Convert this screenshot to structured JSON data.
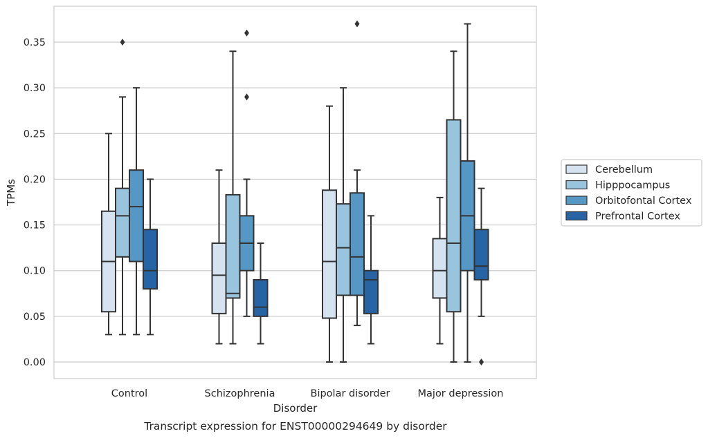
{
  "chart_data": {
    "type": "box",
    "caption": "Transcript expression for ENST00000294649 by disorder",
    "xlabel": "Disorder",
    "ylabel": "TPMs",
    "ylim": [
      -0.018,
      0.388
    ],
    "yticks": [
      "0.00",
      "0.05",
      "0.10",
      "0.15",
      "0.20",
      "0.25",
      "0.30",
      "0.35"
    ],
    "grid": "horizontal",
    "legend_position": "right",
    "categories": [
      "Control",
      "Schizophrenia",
      "Bipolar disorder",
      "Major depression"
    ],
    "series": [
      {
        "name": "Cerebellum",
        "color": "#d5e3f1",
        "boxes": [
          {
            "whisker_low": 0.03,
            "q1": 0.055,
            "median": 0.11,
            "q3": 0.165,
            "whisker_high": 0.25,
            "outliers": []
          },
          {
            "whisker_low": 0.02,
            "q1": 0.053,
            "median": 0.095,
            "q3": 0.13,
            "whisker_high": 0.21,
            "outliers": []
          },
          {
            "whisker_low": 0.0,
            "q1": 0.048,
            "median": 0.11,
            "q3": 0.188,
            "whisker_high": 0.28,
            "outliers": []
          },
          {
            "whisker_low": 0.02,
            "q1": 0.07,
            "median": 0.1,
            "q3": 0.135,
            "whisker_high": 0.18,
            "outliers": []
          }
        ]
      },
      {
        "name": "Hipppocampus",
        "color": "#99c4dd",
        "boxes": [
          {
            "whisker_low": 0.03,
            "q1": 0.115,
            "median": 0.16,
            "q3": 0.19,
            "whisker_high": 0.29,
            "outliers": [
              0.35
            ]
          },
          {
            "whisker_low": 0.02,
            "q1": 0.07,
            "median": 0.075,
            "q3": 0.183,
            "whisker_high": 0.34,
            "outliers": []
          },
          {
            "whisker_low": 0.0,
            "q1": 0.073,
            "median": 0.125,
            "q3": 0.173,
            "whisker_high": 0.3,
            "outliers": []
          },
          {
            "whisker_low": 0.0,
            "q1": 0.055,
            "median": 0.13,
            "q3": 0.265,
            "whisker_high": 0.34,
            "outliers": []
          }
        ]
      },
      {
        "name": "Orbitofontal Cortex",
        "color": "#5597c5",
        "boxes": [
          {
            "whisker_low": 0.03,
            "q1": 0.11,
            "median": 0.17,
            "q3": 0.21,
            "whisker_high": 0.3,
            "outliers": []
          },
          {
            "whisker_low": 0.05,
            "q1": 0.1,
            "median": 0.13,
            "q3": 0.16,
            "whisker_high": 0.2,
            "outliers": [
              0.29,
              0.36
            ]
          },
          {
            "whisker_low": 0.04,
            "q1": 0.073,
            "median": 0.115,
            "q3": 0.185,
            "whisker_high": 0.21,
            "outliers": [
              0.37
            ]
          },
          {
            "whisker_low": 0.0,
            "q1": 0.1,
            "median": 0.16,
            "q3": 0.22,
            "whisker_high": 0.37,
            "outliers": []
          }
        ]
      },
      {
        "name": "Prefrontal Cortex",
        "color": "#2664a6",
        "boxes": [
          {
            "whisker_low": 0.03,
            "q1": 0.08,
            "median": 0.1,
            "q3": 0.145,
            "whisker_high": 0.2,
            "outliers": []
          },
          {
            "whisker_low": 0.02,
            "q1": 0.05,
            "median": 0.06,
            "q3": 0.09,
            "whisker_high": 0.13,
            "outliers": []
          },
          {
            "whisker_low": 0.02,
            "q1": 0.053,
            "median": 0.09,
            "q3": 0.1,
            "whisker_high": 0.16,
            "outliers": []
          },
          {
            "whisker_low": 0.05,
            "q1": 0.09,
            "median": 0.105,
            "q3": 0.145,
            "whisker_high": 0.19,
            "outliers": [
              0.0
            ]
          }
        ]
      }
    ]
  }
}
